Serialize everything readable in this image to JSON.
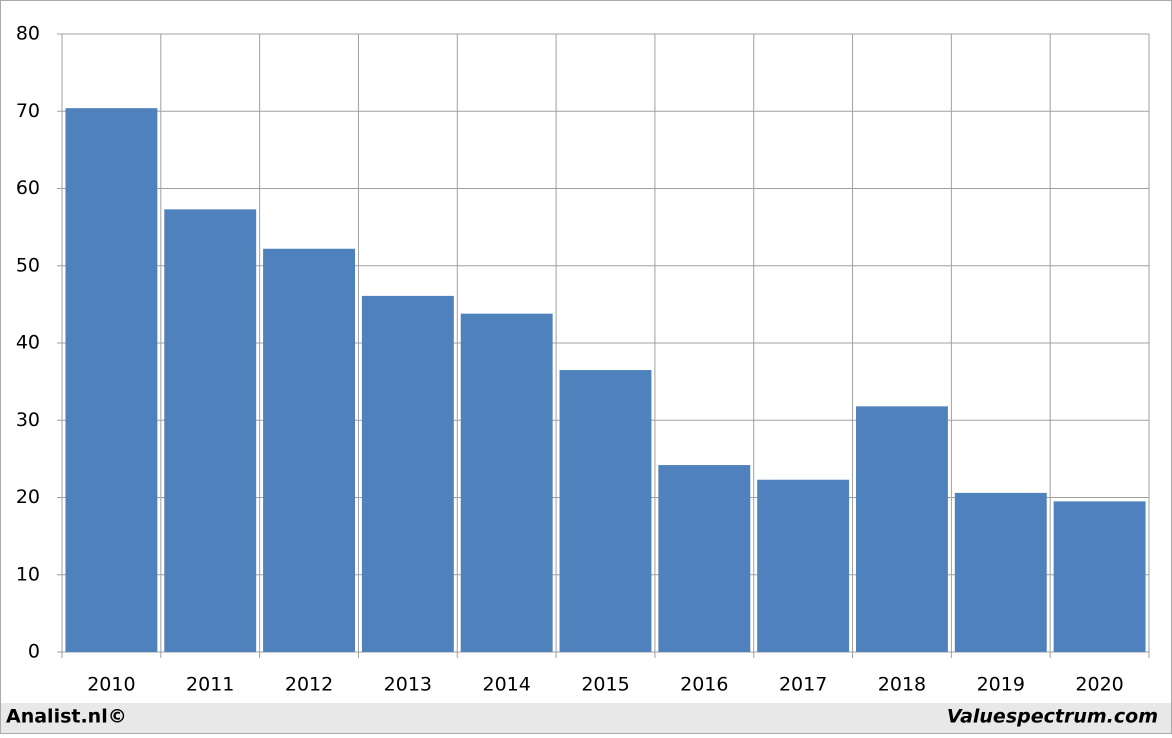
{
  "chart_data": {
    "type": "bar",
    "categories": [
      "2010",
      "2011",
      "2012",
      "2013",
      "2014",
      "2015",
      "2016",
      "2017",
      "2018",
      "2019",
      "2020"
    ],
    "values": [
      70.4,
      57.3,
      52.2,
      46.1,
      43.8,
      36.5,
      24.2,
      22.3,
      31.8,
      20.6,
      19.5
    ],
    "color": "#4f81bd",
    "ylim": [
      0,
      80
    ],
    "yticks": [
      0,
      10,
      20,
      30,
      40,
      50,
      60,
      70,
      80
    ],
    "grid": true,
    "footer_left": "Analist.nl©",
    "footer_right": "Valuespectrum.com"
  }
}
